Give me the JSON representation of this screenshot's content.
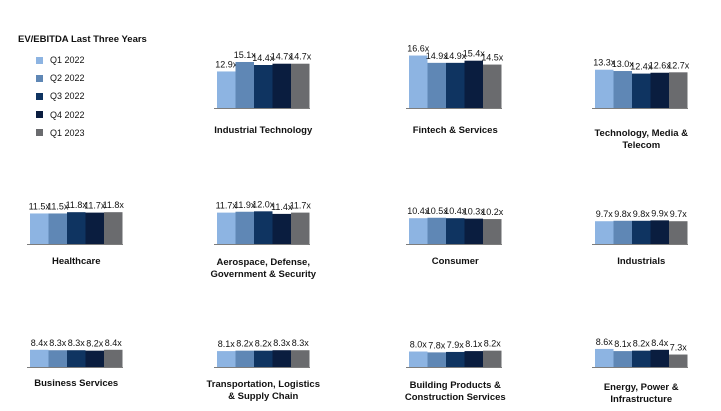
{
  "legend": {
    "title": "EV/EBITDA Last Three Years",
    "items": [
      {
        "label": "Q1 2022",
        "color": "#8db4e2"
      },
      {
        "label": "Q2 2022",
        "color": "#5f87b5"
      },
      {
        "label": "Q3 2022",
        "color": "#0f3461"
      },
      {
        "label": "Q4 2022",
        "color": "#0a1d3f"
      },
      {
        "label": "Q1 2023",
        "color": "#6a6b6e"
      }
    ]
  },
  "chart_data": [
    {
      "type": "bar",
      "title": [
        "Industrial Technology"
      ],
      "categories": [
        "Q1 2022",
        "Q2 2022",
        "Q3 2022",
        "Q4 2022",
        "Q1 2023"
      ],
      "values": [
        12.9,
        15.1,
        14.4,
        14.7,
        14.7
      ],
      "labels": [
        "12.9x",
        "15.1x",
        "14.4x",
        "14.7x",
        "14.7x"
      ]
    },
    {
      "type": "bar",
      "title": [
        "Fintech & Services"
      ],
      "categories": [
        "Q1 2022",
        "Q2 2022",
        "Q3 2022",
        "Q4 2022",
        "Q1 2023"
      ],
      "values": [
        16.6,
        14.9,
        14.9,
        15.4,
        14.5
      ],
      "labels": [
        "16.6x",
        "14.9x",
        "14.9x",
        "15.4x",
        "14.5x"
      ]
    },
    {
      "type": "bar",
      "title": [
        "Technology, Media &",
        "Telecom"
      ],
      "categories": [
        "Q1 2022",
        "Q2 2022",
        "Q3 2022",
        "Q4 2022",
        "Q1 2023"
      ],
      "values": [
        13.3,
        13.0,
        12.4,
        12.6,
        12.7
      ],
      "labels": [
        "13.3x",
        "13.0x",
        "12.4x",
        "12.6x",
        "12.7x"
      ]
    },
    {
      "type": "bar",
      "title": [
        "Healthcare"
      ],
      "categories": [
        "Q1 2022",
        "Q2 2022",
        "Q3 2022",
        "Q4 2022",
        "Q1 2023"
      ],
      "values": [
        11.5,
        11.5,
        11.8,
        11.7,
        11.8
      ],
      "labels": [
        "11.5x",
        "11.5x",
        "11.8x",
        "11.7x",
        "11.8x"
      ]
    },
    {
      "type": "bar",
      "title": [
        "Aerospace, Defense,",
        "Government & Security"
      ],
      "categories": [
        "Q1 2022",
        "Q2 2022",
        "Q3 2022",
        "Q4 2022",
        "Q1 2023"
      ],
      "values": [
        11.7,
        11.9,
        12.0,
        11.4,
        11.7
      ],
      "labels": [
        "11.7x",
        "11.9x",
        "12.0x",
        "11.4x",
        "11.7x"
      ]
    },
    {
      "type": "bar",
      "title": [
        "Consumer"
      ],
      "categories": [
        "Q1 2022",
        "Q2 2022",
        "Q3 2022",
        "Q4 2022",
        "Q1 2023"
      ],
      "values": [
        10.4,
        10.5,
        10.4,
        10.3,
        10.2
      ],
      "labels": [
        "10.4x",
        "10.5x",
        "10.4x",
        "10.3x",
        "10.2x"
      ]
    },
    {
      "type": "bar",
      "title": [
        "Industrials"
      ],
      "categories": [
        "Q1 2022",
        "Q2 2022",
        "Q3 2022",
        "Q4 2022",
        "Q1 2023"
      ],
      "values": [
        9.7,
        9.8,
        9.8,
        9.9,
        9.7
      ],
      "labels": [
        "9.7x",
        "9.8x",
        "9.8x",
        "9.9x",
        "9.7x"
      ]
    },
    {
      "type": "bar",
      "title": [
        "Business Services"
      ],
      "categories": [
        "Q1 2022",
        "Q2 2022",
        "Q3 2022",
        "Q4 2022",
        "Q1 2023"
      ],
      "values": [
        8.4,
        8.3,
        8.3,
        8.2,
        8.4
      ],
      "labels": [
        "8.4x",
        "8.3x",
        "8.3x",
        "8.2x",
        "8.4x"
      ]
    },
    {
      "type": "bar",
      "title": [
        "Transportation, Logistics",
        "& Supply Chain"
      ],
      "categories": [
        "Q1 2022",
        "Q2 2022",
        "Q3 2022",
        "Q4 2022",
        "Q1 2023"
      ],
      "values": [
        8.1,
        8.2,
        8.2,
        8.3,
        8.3
      ],
      "labels": [
        "8.1x",
        "8.2x",
        "8.2x",
        "8.3x",
        "8.3x"
      ]
    },
    {
      "type": "bar",
      "title": [
        "Building Products &",
        "Construction Services"
      ],
      "categories": [
        "Q1 2022",
        "Q2 2022",
        "Q3 2022",
        "Q4 2022",
        "Q1 2023"
      ],
      "values": [
        8.0,
        7.8,
        7.9,
        8.1,
        8.2
      ],
      "labels": [
        "8.0x",
        "7.8x",
        "7.9x",
        "8.1x",
        "8.2x"
      ]
    },
    {
      "type": "bar",
      "title": [
        "Energy, Power &",
        "Infrastructure"
      ],
      "categories": [
        "Q1 2022",
        "Q2 2022",
        "Q3 2022",
        "Q4 2022",
        "Q1 2023"
      ],
      "values": [
        8.6,
        8.1,
        8.2,
        8.4,
        7.3
      ],
      "labels": [
        "8.6x",
        "8.1x",
        "8.2x",
        "8.4x",
        "7.3x"
      ]
    }
  ]
}
